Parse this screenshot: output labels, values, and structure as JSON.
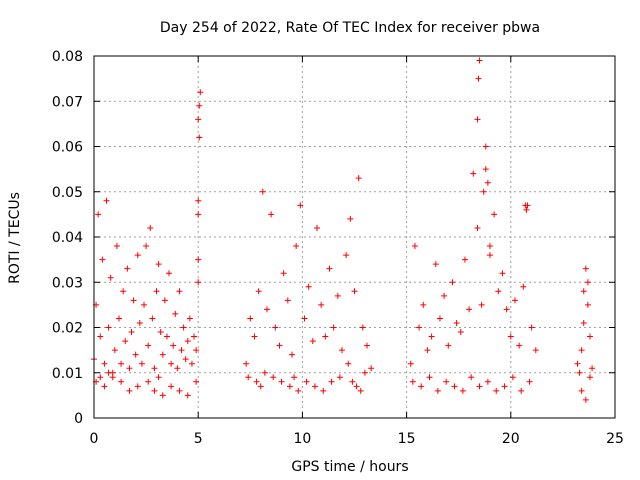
{
  "chart_data": {
    "type": "scatter",
    "title": "Day 254 of 2022, Rate Of TEC Index for receiver pbwa",
    "xlabel": "GPS time / hours",
    "ylabel": "ROTI / TECUs",
    "xlim": [
      0,
      25
    ],
    "ylim": [
      0,
      0.08
    ],
    "grid": true,
    "marker": "+",
    "color": "#ff0000",
    "x_ticks": [
      0,
      5,
      10,
      15,
      20,
      25
    ],
    "x_tick_labels": [
      "0",
      "5",
      "10",
      "15",
      "20",
      "25"
    ],
    "y_ticks": [
      0,
      0.01,
      0.02,
      0.03,
      0.04,
      0.05,
      0.06,
      0.07,
      0.08
    ],
    "y_tick_labels": [
      "0",
      "0.01",
      "0.02",
      "0.03",
      "0.04",
      "0.05",
      "0.06",
      "0.07",
      "0.08"
    ],
    "series": [
      {
        "name": "ROTI",
        "x": [
          0.0,
          0.1,
          0.2,
          0.3,
          0.4,
          0.5,
          0.6,
          0.7,
          0.8,
          0.9,
          1.0,
          1.1,
          1.2,
          1.3,
          1.4,
          1.5,
          1.6,
          1.7,
          1.8,
          1.9,
          2.0,
          2.1,
          2.2,
          2.3,
          2.4,
          2.5,
          2.6,
          2.7,
          2.8,
          2.9,
          3.0,
          3.1,
          3.2,
          3.3,
          3.4,
          3.5,
          3.6,
          3.7,
          3.8,
          3.9,
          4.0,
          4.1,
          4.2,
          4.3,
          4.4,
          4.5,
          4.6,
          4.7,
          4.8,
          4.9,
          5.0,
          5.05,
          5.1,
          0.1,
          0.3,
          0.5,
          0.7,
          0.9,
          1.3,
          1.7,
          2.1,
          2.6,
          2.9,
          3.1,
          3.3,
          3.7,
          4.1,
          4.5,
          4.9,
          5.0,
          5.05,
          5.0,
          5.0,
          5.0,
          7.3,
          7.5,
          7.7,
          7.9,
          8.1,
          8.3,
          8.5,
          8.7,
          8.9,
          9.1,
          9.3,
          9.5,
          9.7,
          9.9,
          10.1,
          10.3,
          10.5,
          10.7,
          10.9,
          11.1,
          11.3,
          11.5,
          11.7,
          11.9,
          12.1,
          12.3,
          12.5,
          12.7,
          12.9,
          13.1,
          13.3,
          7.4,
          7.8,
          8.0,
          8.2,
          8.6,
          9.0,
          9.4,
          9.6,
          9.8,
          10.2,
          10.6,
          11.0,
          11.4,
          11.8,
          12.2,
          12.4,
          12.6,
          12.8,
          13.0,
          15.2,
          15.4,
          15.6,
          15.8,
          16.0,
          16.2,
          16.4,
          16.6,
          16.8,
          17.0,
          17.2,
          17.4,
          17.6,
          17.8,
          18.0,
          18.2,
          18.4,
          18.6,
          18.8,
          19.0,
          19.2,
          19.4,
          19.6,
          19.8,
          20.0,
          20.2,
          20.4,
          20.6,
          20.8,
          21.0,
          21.2,
          15.3,
          15.7,
          16.1,
          16.5,
          16.9,
          17.3,
          17.7,
          18.1,
          18.5,
          18.9,
          19.3,
          19.7,
          20.1,
          20.5,
          20.9,
          18.4,
          18.45,
          18.5,
          18.7,
          18.8,
          18.9,
          19.0,
          20.7,
          20.75,
          23.2,
          23.3,
          23.4,
          23.5,
          23.6,
          23.7,
          23.8,
          23.9,
          23.4,
          23.6,
          23.8,
          23.5,
          23.7
        ],
        "y": [
          0.013,
          0.025,
          0.045,
          0.018,
          0.035,
          0.012,
          0.048,
          0.02,
          0.031,
          0.01,
          0.015,
          0.038,
          0.022,
          0.012,
          0.028,
          0.017,
          0.033,
          0.011,
          0.019,
          0.026,
          0.014,
          0.036,
          0.021,
          0.012,
          0.025,
          0.038,
          0.016,
          0.042,
          0.022,
          0.011,
          0.028,
          0.034,
          0.019,
          0.014,
          0.026,
          0.018,
          0.032,
          0.012,
          0.016,
          0.023,
          0.011,
          0.028,
          0.015,
          0.02,
          0.013,
          0.017,
          0.022,
          0.012,
          0.018,
          0.015,
          0.035,
          0.062,
          0.072,
          0.008,
          0.009,
          0.007,
          0.01,
          0.009,
          0.008,
          0.006,
          0.007,
          0.008,
          0.006,
          0.009,
          0.005,
          0.007,
          0.006,
          0.005,
          0.008,
          0.066,
          0.069,
          0.048,
          0.045,
          0.03,
          0.012,
          0.022,
          0.018,
          0.028,
          0.05,
          0.024,
          0.045,
          0.02,
          0.016,
          0.032,
          0.026,
          0.014,
          0.038,
          0.047,
          0.022,
          0.029,
          0.017,
          0.042,
          0.025,
          0.018,
          0.033,
          0.02,
          0.027,
          0.015,
          0.036,
          0.044,
          0.028,
          0.053,
          0.02,
          0.016,
          0.011,
          0.009,
          0.008,
          0.007,
          0.01,
          0.009,
          0.008,
          0.007,
          0.009,
          0.006,
          0.008,
          0.007,
          0.006,
          0.008,
          0.009,
          0.012,
          0.008,
          0.007,
          0.006,
          0.01,
          0.012,
          0.038,
          0.02,
          0.025,
          0.015,
          0.018,
          0.034,
          0.022,
          0.027,
          0.016,
          0.03,
          0.021,
          0.019,
          0.035,
          0.024,
          0.054,
          0.042,
          0.025,
          0.06,
          0.036,
          0.045,
          0.028,
          0.032,
          0.024,
          0.018,
          0.026,
          0.016,
          0.029,
          0.047,
          0.02,
          0.015,
          0.008,
          0.007,
          0.009,
          0.006,
          0.008,
          0.007,
          0.006,
          0.009,
          0.007,
          0.008,
          0.006,
          0.007,
          0.009,
          0.006,
          0.008,
          0.066,
          0.075,
          0.079,
          0.05,
          0.055,
          0.052,
          0.038,
          0.047,
          0.046,
          0.012,
          0.01,
          0.015,
          0.028,
          0.033,
          0.025,
          0.018,
          0.011,
          0.006,
          0.004,
          0.009,
          0.021,
          0.03
        ]
      }
    ]
  }
}
